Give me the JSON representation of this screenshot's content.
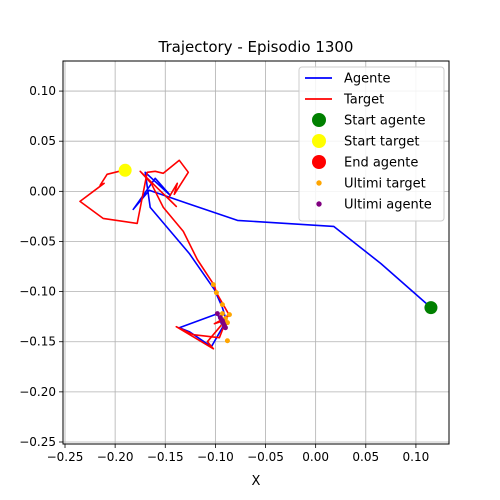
{
  "chart_data": {
    "type": "line",
    "title": "Trajectory - Episodio 1300",
    "xlabel": "X",
    "ylabel": "",
    "xlim": [
      -0.252,
      0.133
    ],
    "ylim": [
      -0.252,
      0.13
    ],
    "grid": true,
    "legend_position": "top-right",
    "x_ticks": [
      -0.25,
      -0.2,
      -0.15,
      -0.1,
      -0.05,
      0.0,
      0.05,
      0.1
    ],
    "x_tick_labels": [
      "−0.25",
      "−0.20",
      "−0.15",
      "−0.10",
      "−0.05",
      "0.00",
      "0.05",
      "0.10"
    ],
    "y_ticks": [
      -0.25,
      -0.2,
      -0.15,
      -0.1,
      -0.05,
      0.0,
      0.05,
      0.1
    ],
    "y_tick_labels": [
      "−0.25",
      "−0.20",
      "−0.15",
      "−0.10",
      "−0.05",
      "0.00",
      "0.05",
      "0.10"
    ],
    "series": [
      {
        "name": "Agente",
        "kind": "line",
        "color": "#0000ff",
        "x": [
          0.115,
          0.065,
          0.018,
          -0.078,
          -0.128,
          -0.166,
          -0.182,
          -0.16,
          -0.145,
          -0.17,
          -0.165,
          -0.126,
          -0.101,
          -0.093,
          -0.089,
          -0.104,
          -0.126,
          -0.136,
          -0.098,
          -0.092
        ],
        "y": [
          -0.116,
          -0.072,
          -0.035,
          -0.029,
          -0.012,
          0.001,
          -0.018,
          0.013,
          -0.004,
          0.019,
          -0.016,
          -0.062,
          -0.098,
          -0.116,
          -0.129,
          -0.155,
          -0.14,
          -0.136,
          -0.122,
          -0.137
        ]
      },
      {
        "name": "Target",
        "kind": "line",
        "color": "#ff0000",
        "x": [
          -0.188,
          -0.208,
          -0.215,
          -0.211,
          -0.235,
          -0.212,
          -0.178,
          -0.168,
          -0.16,
          -0.152,
          -0.136,
          -0.127,
          -0.141,
          -0.138,
          -0.147,
          -0.139,
          -0.175,
          -0.164,
          -0.152,
          -0.132,
          -0.118,
          -0.101,
          -0.099,
          -0.087,
          -0.092,
          -0.108,
          -0.102,
          -0.139,
          -0.122,
          -0.096,
          -0.089,
          -0.101,
          -0.086
        ],
        "y": [
          0.022,
          0.017,
          0.006,
          0.008,
          -0.01,
          -0.027,
          -0.032,
          0.019,
          0.02,
          0.018,
          0.031,
          0.019,
          -0.003,
          0.008,
          -0.007,
          -0.015,
          0.02,
          0.008,
          -0.016,
          -0.04,
          -0.068,
          -0.094,
          -0.101,
          -0.122,
          -0.131,
          -0.15,
          -0.157,
          -0.135,
          -0.143,
          -0.146,
          -0.128,
          -0.132,
          -0.124
        ]
      },
      {
        "name": "Start agente",
        "kind": "marker",
        "color": "#008000",
        "points": [
          [
            0.115,
            -0.116
          ]
        ]
      },
      {
        "name": "Start target",
        "kind": "marker",
        "color": "#ffff00",
        "points": [
          [
            -0.19,
            0.021
          ]
        ]
      },
      {
        "name": "End agente",
        "kind": "marker",
        "color": "#ff0000",
        "points": []
      },
      {
        "name": "Ultimi target",
        "kind": "scatter",
        "color": "#ffa500",
        "points": [
          [
            -0.102,
            -0.093
          ],
          [
            -0.099,
            -0.101
          ],
          [
            -0.093,
            -0.113
          ],
          [
            -0.093,
            -0.122
          ],
          [
            -0.09,
            -0.127
          ],
          [
            -0.088,
            -0.131
          ],
          [
            -0.086,
            -0.123
          ],
          [
            -0.088,
            -0.149
          ],
          [
            -0.092,
            -0.133
          ]
        ]
      },
      {
        "name": "Ultimi agente",
        "kind": "scatter",
        "color": "#800080",
        "points": [
          [
            -0.098,
            -0.122
          ],
          [
            -0.095,
            -0.126
          ],
          [
            -0.093,
            -0.129
          ],
          [
            -0.092,
            -0.132
          ],
          [
            -0.091,
            -0.134
          ],
          [
            -0.09,
            -0.136
          ]
        ]
      }
    ]
  }
}
